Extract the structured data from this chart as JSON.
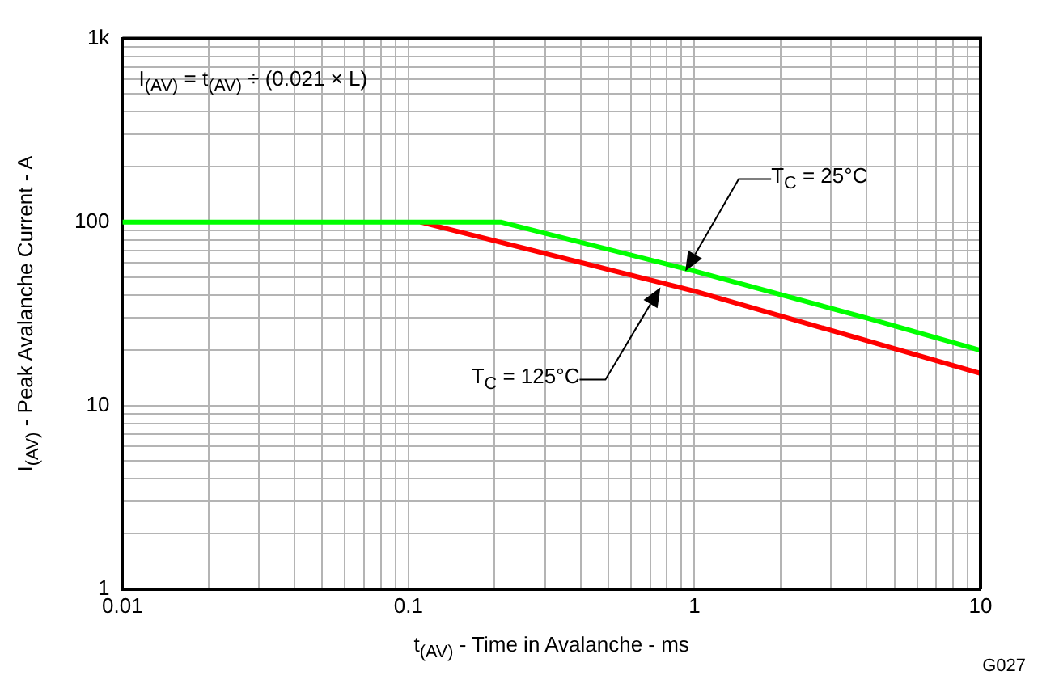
{
  "chart_data": {
    "type": "line",
    "xlabel": "t$_{(AV)}$ - Time in Avalanche - ms",
    "ylabel": "I$_{(AV)}$ - Peak Avalanche Current - A",
    "log": "xy",
    "grid": true,
    "legend": false,
    "marker": "none",
    "line_style": "solid",
    "xlim": [
      0.01,
      10
    ],
    "ylim": [
      1,
      1000
    ],
    "xticks": [
      0.01,
      {
        "value": 0.02,
        "label": null
      },
      {
        "value": 0.03,
        "label": null
      },
      {
        "value": 0.04,
        "label": null
      },
      {
        "value": 0.05,
        "label": null
      },
      {
        "value": 0.06,
        "label": null
      },
      {
        "value": 0.07,
        "label": null
      },
      {
        "value": 0.08,
        "label": null
      },
      {
        "value": 0.09,
        "label": null
      },
      0.1,
      {
        "value": 0.2,
        "label": null
      },
      {
        "value": 0.3,
        "label": null
      },
      {
        "value": 0.4,
        "label": null
      },
      {
        "value": 0.5,
        "label": null
      },
      {
        "value": 0.6,
        "label": null
      },
      {
        "value": 0.7,
        "label": null
      },
      {
        "value": 0.8,
        "label": null
      },
      {
        "value": 0.9,
        "label": null
      },
      1,
      {
        "value": 2,
        "label": null
      },
      {
        "value": 3,
        "label": null
      },
      {
        "value": 4,
        "label": null
      },
      {
        "value": 5,
        "label": null
      },
      {
        "value": 6,
        "label": null
      },
      {
        "value": 7,
        "label": null
      },
      {
        "value": 8,
        "label": null
      },
      {
        "value": 9,
        "label": null
      },
      10
    ],
    "yticks": [
      1,
      {
        "value": 2,
        "label": null
      },
      {
        "value": 3,
        "label": null
      },
      {
        "value": 4,
        "label": null
      },
      {
        "value": 5,
        "label": null
      },
      {
        "value": 6,
        "label": null
      },
      {
        "value": 7,
        "label": null
      },
      {
        "value": 8,
        "label": null
      },
      {
        "value": 9,
        "label": null
      },
      10,
      {
        "value": 20,
        "label": null
      },
      {
        "value": 30,
        "label": null
      },
      {
        "value": 40,
        "label": null
      },
      {
        "value": 50,
        "label": null
      },
      {
        "value": 60,
        "label": null
      },
      {
        "value": 70,
        "label": null
      },
      {
        "value": 80,
        "label": null
      },
      {
        "value": 90,
        "label": null
      },
      100,
      {
        "value": 200,
        "label": null
      },
      {
        "value": 300,
        "label": null
      },
      {
        "value": 400,
        "label": null
      },
      {
        "value": 500,
        "label": null
      },
      {
        "value": 600,
        "label": null
      },
      {
        "value": 700,
        "label": null
      },
      {
        "value": 800,
        "label": null
      },
      {
        "value": 900,
        "label": null
      },
      {
        "value": 1000,
        "label": "1k"
      }
    ],
    "series": [
      {
        "color": "#00ff00",
        "x": [
          0.01,
          0.21,
          1,
          4,
          10
        ],
        "values": [
          100,
          100,
          54,
          30,
          20
        ]
      },
      {
        "color": "#ff0000",
        "x": [
          0.11,
          1,
          10
        ],
        "values": [
          100,
          42,
          15
        ]
      }
    ],
    "annotations": [
      "I$_{(AV)}$ = t$_{(AV)}$ ÷ (0.021 × L)",
      "T$_{C}$ = 25°C",
      "T$_{C}$ = 125°C",
      "G027"
    ]
  }
}
